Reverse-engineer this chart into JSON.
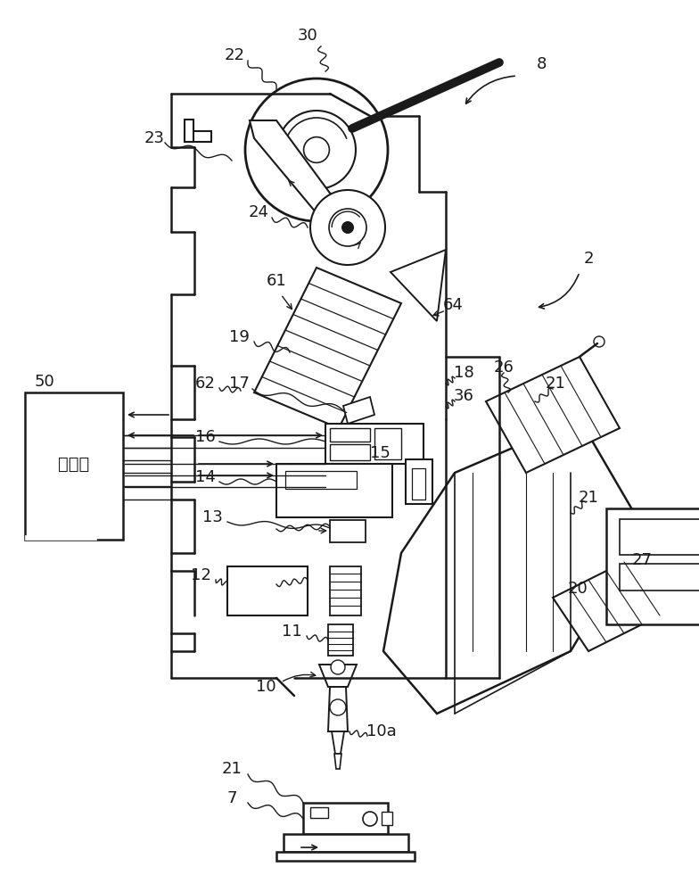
{
  "bg_color": "#ffffff",
  "line_color": "#1a1a1a",
  "label_color": "#1a1a1a",
  "label_fontsize": 13,
  "fig_width": 7.84,
  "fig_height": 10.0
}
